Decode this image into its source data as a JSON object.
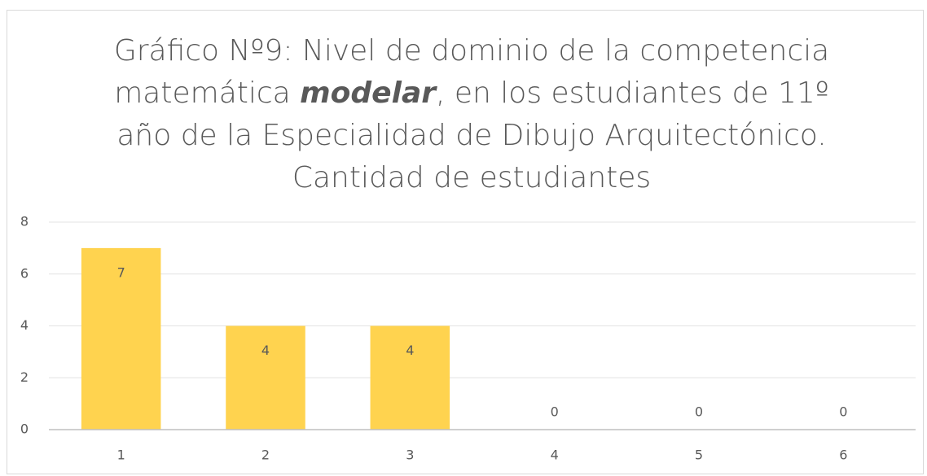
{
  "chart_data": {
    "type": "bar",
    "title": [
      "Gráfico Nº9: Nivel de dominio de la competencia",
      "matemática ",
      "modelar",
      ", en los estudiantes de 11º",
      "año de la Especialidad de Dibujo Arquitectónico.",
      "Cantidad de estudiantes"
    ],
    "categories": [
      "1",
      "2",
      "3",
      "4",
      "5",
      "6"
    ],
    "values": [
      7,
      4,
      4,
      0,
      0,
      0
    ],
    "color": "#ffd34f",
    "ylim": [
      0,
      8
    ],
    "yticks": [
      0,
      2,
      4,
      6,
      8
    ],
    "grid": true
  }
}
